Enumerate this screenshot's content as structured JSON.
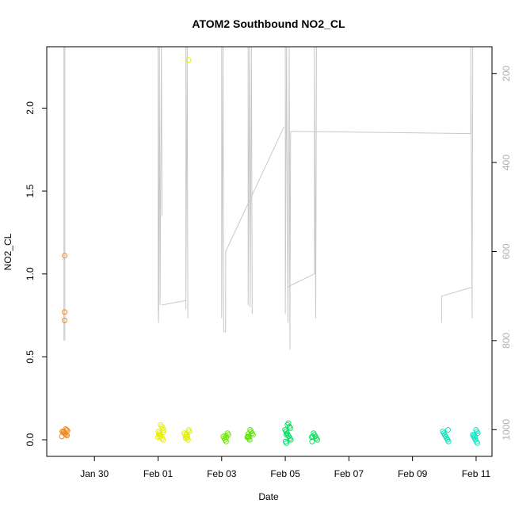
{
  "chart_data": {
    "type": "scatter",
    "title": "ATOM2 Southbound NO2_CL",
    "xlabel": "Date",
    "ylabel": "NO2_CL",
    "xlim": [
      "2022-01-28T12:00",
      "2022-02-11T12:00"
    ],
    "ylim": [
      -0.1,
      2.37
    ],
    "x_ticks": [
      {
        "value": "2022-01-30",
        "label": "Jan 30"
      },
      {
        "value": "2022-02-01",
        "label": "Feb 01"
      },
      {
        "value": "2022-02-03",
        "label": "Feb 03"
      },
      {
        "value": "2022-02-05",
        "label": "Feb 05"
      },
      {
        "value": "2022-02-07",
        "label": "Feb 07"
      },
      {
        "value": "2022-02-09",
        "label": "Feb 09"
      },
      {
        "value": "2022-02-11",
        "label": "Feb 11"
      }
    ],
    "y_ticks": [
      {
        "value": 0.0,
        "label": "0.0"
      },
      {
        "value": 0.5,
        "label": "0.5"
      },
      {
        "value": 1.0,
        "label": "1.0"
      },
      {
        "value": 1.5,
        "label": "1.5"
      },
      {
        "value": 2.0,
        "label": "2.0"
      }
    ],
    "right_axis": {
      "reversed": true,
      "ylim": [
        1060,
        140
      ],
      "color": "#b0b0b0",
      "ticks": [
        {
          "value": 200,
          "label": "200"
        },
        {
          "value": 400,
          "label": "400"
        },
        {
          "value": 600,
          "label": "600"
        },
        {
          "value": 800,
          "label": "800"
        },
        {
          "value": 1000,
          "label": "1000"
        }
      ]
    },
    "point_clusters": [
      {
        "x": "2022-01-29T01:30",
        "ys": [
          0.02,
          0.025,
          0.03,
          0.035,
          0.04,
          0.045,
          0.05,
          0.055,
          0.06,
          0.065,
          0.04,
          0.05
        ],
        "color": "#f08c1e"
      },
      {
        "x": "2022-02-01T02:00",
        "ys": [
          0.0,
          0.01,
          0.02,
          0.03,
          0.04,
          0.05,
          0.06,
          0.07,
          0.08,
          0.09,
          0.02,
          0.03,
          0.015,
          0.045
        ],
        "color": "#e8f000"
      },
      {
        "x": "2022-02-01T21:30",
        "ys": [
          0.0,
          0.01,
          0.02,
          0.03,
          0.04,
          0.05,
          0.06,
          0.02,
          0.035,
          0.01
        ],
        "color": "#e2f000"
      },
      {
        "x": "2022-02-03T03:00",
        "ys": [
          -0.01,
          0.0,
          0.01,
          0.02,
          0.03,
          0.04,
          0.015,
          0.025
        ],
        "color": "#6be800"
      },
      {
        "x": "2022-02-03T21:30",
        "ys": [
          0.0,
          0.01,
          0.02,
          0.03,
          0.04,
          0.05,
          0.06,
          0.02,
          0.035,
          0.015
        ],
        "color": "#5ae400"
      },
      {
        "x": "2022-02-05T02:00",
        "ys": [
          -0.02,
          -0.01,
          0.0,
          0.01,
          0.02,
          0.03,
          0.04,
          0.05,
          0.06,
          0.07,
          0.08,
          0.1,
          0.09,
          0.03
        ],
        "color": "#00e060"
      },
      {
        "x": "2022-02-05T22:00",
        "ys": [
          -0.01,
          0.0,
          0.01,
          0.02,
          0.03,
          0.04,
          0.02,
          0.015
        ],
        "color": "#10e060"
      },
      {
        "x": "2022-02-10T01:00",
        "ys": [
          -0.01,
          0.0,
          0.01,
          0.02,
          0.03,
          0.04,
          0.05,
          0.06
        ],
        "color": "#00e6b8"
      },
      {
        "x": "2022-02-10T23:30",
        "ys": [
          -0.02,
          -0.01,
          0.0,
          0.01,
          0.02,
          0.03,
          0.04,
          0.05,
          0.06,
          0.02,
          0.03
        ],
        "color": "#10e8c8"
      }
    ],
    "outlier_points": [
      {
        "x": "2022-01-29T01:30",
        "y": 1.11,
        "color": "#f08c1e"
      },
      {
        "x": "2022-01-29T01:30",
        "y": 0.77,
        "color": "#f08c1e"
      },
      {
        "x": "2022-01-29T01:30",
        "y": 0.72,
        "color": "#f08c1e"
      },
      {
        "x": "2022-02-01T23:00",
        "y": 2.29,
        "color": "#e8f000"
      }
    ],
    "line_series": {
      "axis": "right",
      "color": "#c8c8c8",
      "segments": [
        [
          [
            "2022-01-29T01:00",
            140
          ],
          [
            "2022-01-29T01:00",
            800
          ]
        ],
        [
          [
            "2022-01-29T01:40",
            140
          ],
          [
            "2022-01-29T01:40",
            800
          ]
        ],
        [
          [
            "2022-02-01T00:00",
            140
          ],
          [
            "2022-02-01T00:00",
            720
          ],
          [
            "2022-02-01T00:20",
            760
          ],
          [
            "2022-02-01T01:00",
            140
          ],
          [
            "2022-02-01T01:30",
            720
          ],
          [
            "2022-02-01T02:30",
            140
          ],
          [
            "2022-02-01T03:00",
            520
          ]
        ],
        [
          [
            "2022-02-01T03:00",
            720
          ],
          [
            "2022-02-01T21:00",
            710
          ]
        ],
        [
          [
            "2022-02-01T21:00",
            140
          ],
          [
            "2022-02-01T21:00",
            730
          ],
          [
            "2022-02-01T22:00",
            140
          ],
          [
            "2022-02-01T22:30",
            750
          ]
        ],
        [
          [
            "2022-02-03T00:00",
            140
          ],
          [
            "2022-02-03T00:00",
            750
          ],
          [
            "2022-02-03T01:00",
            140
          ],
          [
            "2022-02-03T01:30",
            780
          ],
          [
            "2022-02-03T03:00",
            780
          ],
          [
            "2022-02-03T03:00",
            600
          ]
        ],
        [
          [
            "2022-02-03T03:00",
            600
          ],
          [
            "2022-02-04T23:00",
            320
          ]
        ],
        [
          [
            "2022-02-03T20:00",
            140
          ],
          [
            "2022-02-03T20:00",
            720
          ],
          [
            "2022-02-03T21:00",
            140
          ],
          [
            "2022-02-03T21:30",
            725
          ],
          [
            "2022-02-03T22:30",
            140
          ],
          [
            "2022-02-03T23:00",
            740
          ]
        ],
        [
          [
            "2022-02-05T00:00",
            140
          ],
          [
            "2022-02-05T00:00",
            740
          ],
          [
            "2022-02-05T01:00",
            140
          ],
          [
            "2022-02-05T02:00",
            760
          ],
          [
            "2022-02-05T03:00",
            140
          ],
          [
            "2022-02-05T03:30",
            820
          ],
          [
            "2022-02-05T04:00",
            330
          ]
        ],
        [
          [
            "2022-02-05T01:30",
            680
          ],
          [
            "2022-02-05T22:00",
            650
          ],
          [
            "2022-02-05T22:00",
            140
          ],
          [
            "2022-02-05T23:00",
            750
          ],
          [
            "2022-02-05T23:30",
            140
          ]
        ],
        [
          [
            "2022-02-05T04:00",
            330
          ],
          [
            "2022-02-10T20:00",
            335
          ],
          [
            "2022-02-10T20:00",
            140
          ],
          [
            "2022-02-10T21:00",
            750
          ],
          [
            "2022-02-10T21:30",
            140
          ]
        ],
        [
          [
            "2022-02-09T22:00",
            760
          ],
          [
            "2022-02-09T22:00",
            700
          ],
          [
            "2022-02-10T21:00",
            680
          ]
        ]
      ]
    }
  }
}
